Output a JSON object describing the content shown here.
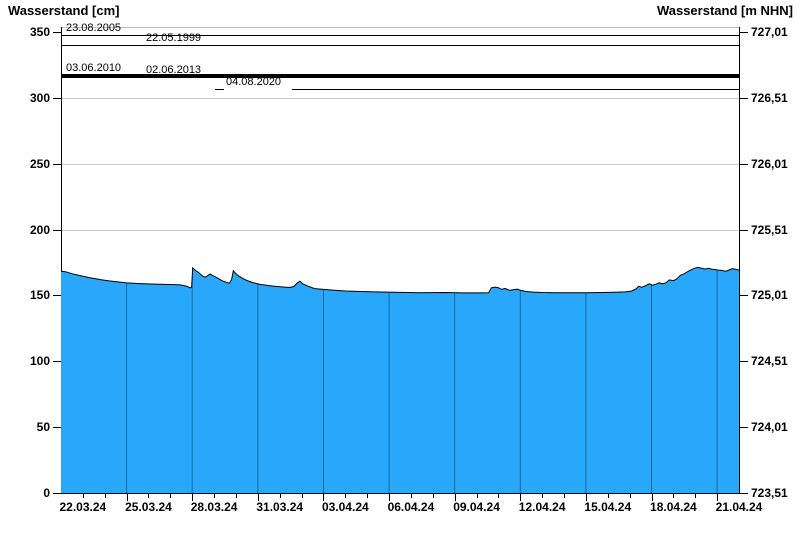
{
  "titles": {
    "left": "Wasserstand [cm]",
    "right": "Wasserstand [m NHN]"
  },
  "colors": {
    "area_fill": "#29A7FA",
    "area_edge": "#000000",
    "inner_gridline": "#1A6A99",
    "grid": "#C9C9C9",
    "axis": "#000000",
    "reference_line": "#000000"
  },
  "chart_data": {
    "type": "area",
    "title": "Wasserstand",
    "grid": "horizontal-only",
    "legend": "none",
    "x_axis": {
      "start_date": "21.03.24",
      "end_date": "21.04.24",
      "span_days": 31,
      "minor_tick_interval_days": 1,
      "major_tick_interval_days": 3,
      "tick_labels": [
        "22.03.24",
        "25.03.24",
        "28.03.24",
        "31.03.24",
        "03.04.24",
        "06.04.24",
        "09.04.24",
        "12.04.24",
        "15.04.24",
        "18.04.24",
        "21.04.24"
      ]
    },
    "y_left": {
      "label": "Wasserstand [cm]",
      "unit": "cm",
      "ticks": [
        0,
        50,
        100,
        150,
        200,
        250,
        300,
        350
      ],
      "range_shown": [
        0,
        354
      ]
    },
    "y_right": {
      "label": "Wasserstand [m NHN]",
      "unit": "m NHN",
      "tick_labels": [
        "723,51",
        "724,01",
        "724,51",
        "725,01",
        "725,51",
        "726,01",
        "726,51",
        "727,01"
      ],
      "range_shown": [
        723.51,
        727.05
      ]
    },
    "series": [
      {
        "name": "Wasserstand [cm]",
        "unit": "cm",
        "x_unit": "days since 21.03.24 (left plot edge)",
        "points_day_cm": [
          [
            0,
            168.3
          ],
          [
            0.2,
            168
          ],
          [
            0.5,
            166.5
          ],
          [
            0.9,
            165
          ],
          [
            1.3,
            163.5
          ],
          [
            1.8,
            162
          ],
          [
            2.2,
            161
          ],
          [
            2.6,
            160.3
          ],
          [
            3,
            159.5
          ],
          [
            3.6,
            159
          ],
          [
            4.1,
            158.7
          ],
          [
            4.5,
            158.5
          ],
          [
            5,
            158.3
          ],
          [
            5.45,
            158
          ],
          [
            5.75,
            157
          ],
          [
            5.9,
            155.8
          ],
          [
            5.97,
            156
          ],
          [
            6.02,
            171
          ],
          [
            6.15,
            169
          ],
          [
            6.3,
            167.3
          ],
          [
            6.45,
            165
          ],
          [
            6.6,
            163.8
          ],
          [
            6.72,
            165.2
          ],
          [
            6.82,
            166.3
          ],
          [
            6.95,
            165
          ],
          [
            7.1,
            163.8
          ],
          [
            7.36,
            161.2
          ],
          [
            7.55,
            160
          ],
          [
            7.7,
            159.3
          ],
          [
            7.8,
            162
          ],
          [
            7.88,
            168.8
          ],
          [
            8,
            166.5
          ],
          [
            8.1,
            165
          ],
          [
            8.3,
            163
          ],
          [
            8.5,
            161.3
          ],
          [
            8.75,
            159.8
          ],
          [
            9.1,
            158.4
          ],
          [
            9.55,
            157.4
          ],
          [
            10,
            156.6
          ],
          [
            10.45,
            156
          ],
          [
            10.65,
            156.8
          ],
          [
            10.8,
            159.5
          ],
          [
            10.93,
            160.8
          ],
          [
            11.05,
            158.8
          ],
          [
            11.3,
            157
          ],
          [
            11.6,
            155.2
          ],
          [
            12,
            154.6
          ],
          [
            12.5,
            154
          ],
          [
            13,
            153.4
          ],
          [
            13.7,
            153
          ],
          [
            14.6,
            152.6
          ],
          [
            15.5,
            152.3
          ],
          [
            16.5,
            152.1
          ],
          [
            17.5,
            152.2
          ],
          [
            18.4,
            151.9
          ],
          [
            19.2,
            151.9
          ],
          [
            19.55,
            152
          ],
          [
            19.68,
            155.8
          ],
          [
            19.85,
            156.3
          ],
          [
            20,
            155.9
          ],
          [
            20.15,
            154.6
          ],
          [
            20.3,
            155.3
          ],
          [
            20.5,
            153.8
          ],
          [
            20.7,
            154.4
          ],
          [
            20.88,
            154.8
          ],
          [
            21,
            153.9
          ],
          [
            21.25,
            153
          ],
          [
            21.6,
            152.5
          ],
          [
            22,
            152.2
          ],
          [
            22.6,
            152
          ],
          [
            23.3,
            152
          ],
          [
            24,
            152.1
          ],
          [
            24.7,
            152.2
          ],
          [
            25.3,
            152.4
          ],
          [
            25.8,
            152.7
          ],
          [
            26.1,
            153.4
          ],
          [
            26.3,
            155
          ],
          [
            26.42,
            157
          ],
          [
            26.55,
            156.2
          ],
          [
            26.75,
            157.5
          ],
          [
            26.9,
            158.8
          ],
          [
            27.05,
            157.8
          ],
          [
            27.2,
            158.5
          ],
          [
            27.35,
            159.6
          ],
          [
            27.5,
            158.8
          ],
          [
            27.65,
            159.5
          ],
          [
            27.82,
            161.8
          ],
          [
            28,
            161.2
          ],
          [
            28.15,
            162.5
          ],
          [
            28.32,
            165.3
          ],
          [
            28.5,
            166.5
          ],
          [
            28.7,
            168.5
          ],
          [
            28.9,
            170.2
          ],
          [
            29.1,
            171.3
          ],
          [
            29.3,
            170.6
          ],
          [
            29.45,
            170
          ],
          [
            29.6,
            170.6
          ],
          [
            29.75,
            170
          ],
          [
            29.9,
            169.6
          ],
          [
            30.05,
            169.2
          ],
          [
            30.2,
            169
          ],
          [
            30.4,
            168.4
          ],
          [
            30.55,
            169.3
          ],
          [
            30.7,
            170.4
          ],
          [
            30.85,
            169.8
          ],
          [
            31,
            169.3
          ]
        ]
      }
    ],
    "reference_lines": [
      {
        "label": "23.08.2005",
        "cm": 348,
        "thick": false
      },
      {
        "label": "22.05.1999",
        "cm": 340,
        "thick": false
      },
      {
        "label": "03.06.2010",
        "cm": 317,
        "thick": true
      },
      {
        "label": "02.06.2013",
        "cm": 316,
        "thick": true
      },
      {
        "label": "04.08.2020",
        "cm": 307,
        "thick": false
      }
    ]
  }
}
